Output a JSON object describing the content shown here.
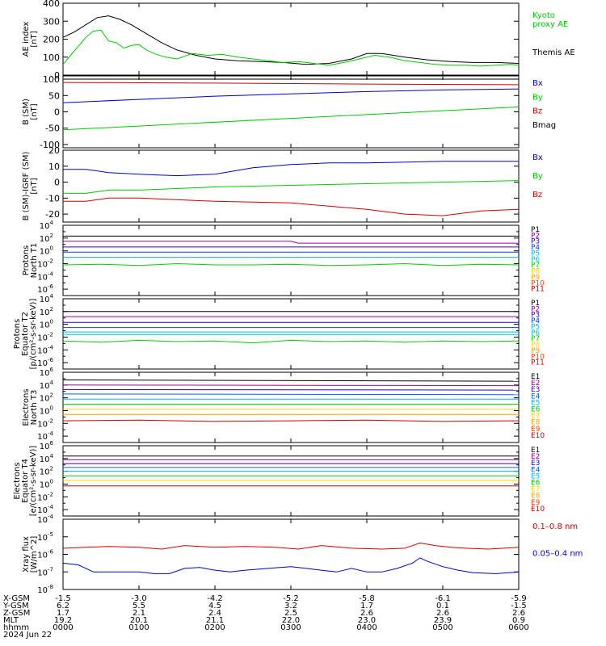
{
  "time_axis": {
    "tick_hours": [
      0,
      1,
      2,
      3,
      4,
      5,
      6
    ],
    "range_hours": [
      0,
      6
    ],
    "row_labels": [
      "X-GSM",
      "Y-GSM",
      "Z-GSM",
      "MLT",
      "hhmm"
    ],
    "rows": [
      [
        "-1.5",
        "-3.0",
        "-4.2",
        "-5.2",
        "-5.8",
        "-6.1",
        "-5.9"
      ],
      [
        "6.2",
        "5.5",
        "4.5",
        "3.2",
        "1.7",
        "0.1",
        "-1.5"
      ],
      [
        "1.7",
        "2.1",
        "2.4",
        "2.5",
        "2.6",
        "2.6",
        "2.6"
      ],
      [
        "19.2",
        "20.1",
        "21.1",
        "22.0",
        "23.0",
        "23.9",
        "0.9"
      ],
      [
        "0000",
        "0100",
        "0200",
        "0300",
        "0400",
        "0500",
        "0600"
      ]
    ],
    "date": "2024 Jun 22"
  },
  "colors": {
    "black": "#000000",
    "red": "#d40000",
    "blue": "#0000d0",
    "green": "#00cc00",
    "p_colors": [
      "#000000",
      "#a000a0",
      "#3000c0",
      "#0040ff",
      "#00b4ff",
      "#00c8c8",
      "#00d000",
      "#ffd800",
      "#ffa000",
      "#ff4000",
      "#cc0000"
    ],
    "e_colors": [
      "#000000",
      "#a000a0",
      "#3000c0",
      "#0060ff",
      "#00b4ff",
      "#00d000",
      "#ffd800",
      "#ffa000",
      "#ff4000",
      "#cc0000"
    ]
  },
  "chart_data": [
    {
      "type": "line",
      "ylabel_lines": [
        "AE index",
        "[nT]"
      ],
      "ylim": [
        0,
        400
      ],
      "yticks": [
        0,
        100,
        200,
        300,
        400
      ],
      "legend": [
        {
          "text": "Kyoto",
          "color": "green"
        },
        {
          "text": "proxy AE",
          "color": "green"
        },
        {
          "text": "Themis AE",
          "color": "black"
        }
      ],
      "series": [
        {
          "name": "Themis AE",
          "color": "black",
          "x": [
            0,
            0.15,
            0.3,
            0.45,
            0.6,
            0.75,
            0.9,
            1.1,
            1.3,
            1.5,
            1.75,
            2.0,
            2.3,
            2.6,
            2.9,
            3.2,
            3.5,
            3.8,
            4.0,
            4.2,
            4.5,
            4.8,
            5.1,
            5.4,
            5.7,
            6.0
          ],
          "y": [
            210,
            240,
            280,
            320,
            330,
            310,
            280,
            230,
            180,
            140,
            110,
            90,
            80,
            75,
            70,
            60,
            65,
            90,
            120,
            120,
            100,
            85,
            75,
            70,
            70,
            65
          ]
        },
        {
          "name": "Kyoto proxy AE",
          "color": "green",
          "x": [
            0,
            0.1,
            0.2,
            0.3,
            0.4,
            0.5,
            0.6,
            0.7,
            0.8,
            0.9,
            1.0,
            1.1,
            1.2,
            1.35,
            1.5,
            1.7,
            1.9,
            2.1,
            2.3,
            2.5,
            2.7,
            2.9,
            3.1,
            3.3,
            3.5,
            3.7,
            3.9,
            4.1,
            4.3,
            4.5,
            4.7,
            4.9,
            5.1,
            5.3,
            5.5,
            5.7,
            5.9,
            6.0
          ],
          "y": [
            60,
            110,
            160,
            210,
            245,
            250,
            190,
            180,
            150,
            165,
            170,
            140,
            120,
            100,
            90,
            120,
            110,
            115,
            100,
            90,
            80,
            70,
            75,
            65,
            55,
            70,
            90,
            110,
            100,
            80,
            70,
            60,
            55,
            55,
            50,
            55,
            60,
            55
          ]
        }
      ]
    },
    {
      "type": "line",
      "ylabel_lines": [
        "B  (SM)",
        "[nT]"
      ],
      "ylim": [
        -110,
        110
      ],
      "yticks": [
        -100,
        -50,
        0,
        50,
        100
      ],
      "legend": [
        {
          "text": "Bx",
          "color": "blue"
        },
        {
          "text": "By",
          "color": "green"
        },
        {
          "text": "Bz",
          "color": "red"
        },
        {
          "text": "Bmag",
          "color": "black"
        }
      ],
      "series": [
        {
          "name": "Bmag",
          "color": "black",
          "x": [
            0,
            6
          ],
          "y": [
            100,
            100
          ]
        },
        {
          "name": "Bz",
          "color": "red",
          "x": [
            0,
            2,
            4,
            6
          ],
          "y": [
            90,
            88,
            85,
            83
          ]
        },
        {
          "name": "Bx",
          "color": "blue",
          "x": [
            0,
            1,
            2,
            3,
            4,
            5,
            6
          ],
          "y": [
            28,
            38,
            48,
            55,
            62,
            67,
            70
          ]
        },
        {
          "name": "By",
          "color": "green",
          "x": [
            0,
            6
          ],
          "y": [
            -55,
            15
          ]
        }
      ]
    },
    {
      "type": "line",
      "ylabel_lines": [
        "B (SM)-IGRF (SM)",
        "[nT]"
      ],
      "ylim": [
        -25,
        20
      ],
      "yticks": [
        -20,
        -10,
        0,
        10,
        20
      ],
      "legend": [
        {
          "text": "Bx",
          "color": "blue"
        },
        {
          "text": "By",
          "color": "green"
        },
        {
          "text": "Bz",
          "color": "red"
        }
      ],
      "series": [
        {
          "name": "Bx",
          "color": "blue",
          "x": [
            0,
            0.3,
            0.6,
            1.0,
            1.5,
            2.0,
            2.5,
            3.0,
            3.5,
            4.0,
            5.0,
            6.0
          ],
          "y": [
            8,
            8,
            6,
            5,
            4,
            5,
            9,
            11,
            12,
            12,
            13,
            13
          ]
        },
        {
          "name": "By",
          "color": "green",
          "x": [
            0,
            0.3,
            0.6,
            1.0,
            2.0,
            3.0,
            4.0,
            5.0,
            6.0
          ],
          "y": [
            -7,
            -7,
            -5,
            -5,
            -3,
            -2,
            -1,
            0,
            1
          ]
        },
        {
          "name": "Bz",
          "color": "red",
          "x": [
            0,
            0.3,
            0.6,
            1.0,
            2.0,
            3.0,
            4.0,
            4.5,
            5.0,
            5.5,
            6.0
          ],
          "y": [
            -12,
            -12,
            -10,
            -10,
            -12,
            -13,
            -17,
            -20,
            -21,
            -18,
            -17
          ]
        }
      ]
    },
    {
      "type": "line",
      "yscale": "log",
      "ylabel_lines": [
        "Protons",
        "North T1"
      ],
      "ylog_range": [
        -7,
        4
      ],
      "ytick_exps": [
        -6,
        -4,
        -2,
        0,
        2,
        4
      ],
      "legend_set": "P",
      "legend_count": 11,
      "series": [
        {
          "name": "P1",
          "color_index": 0,
          "x": [
            0,
            6
          ],
          "y_log": [
            2.3,
            2.3
          ]
        },
        {
          "name": "P2",
          "color_index": 1,
          "x": [
            0,
            3,
            3.1,
            6
          ],
          "y_log": [
            1.5,
            1.5,
            1.2,
            1.2
          ]
        },
        {
          "name": "P3",
          "color_index": 2,
          "x": [
            0,
            6
          ],
          "y_log": [
            0.6,
            0.6
          ]
        },
        {
          "name": "P4",
          "color_index": 3,
          "x": [
            0,
            6
          ],
          "y_log": [
            -0.2,
            -0.2
          ]
        },
        {
          "name": "P5",
          "color_index": 5,
          "x": [
            0,
            6
          ],
          "y_log": [
            -1.0,
            -1.0
          ]
        },
        {
          "name": "P6",
          "color_index": 6,
          "x": [
            0,
            0.5,
            1,
            1.5,
            2,
            2.5,
            3,
            3.5,
            4,
            4.5,
            5,
            5.5,
            6
          ],
          "y_log": [
            -2.2,
            -2.1,
            -2.3,
            -2.0,
            -2.2,
            -2.2,
            -2.1,
            -2.3,
            -2.2,
            -2.0,
            -2.3,
            -2.1,
            -2.2
          ]
        }
      ]
    },
    {
      "type": "line",
      "yscale": "log",
      "ylabel_lines": [
        "Protons",
        "Equator T2",
        "[p/(cm²-s-sr-keV)]"
      ],
      "ylog_range": [
        -7,
        4
      ],
      "ytick_exps": [
        -6,
        -4,
        -2,
        0,
        2,
        4
      ],
      "legend_set": "P",
      "legend_count": 11,
      "series": [
        {
          "name": "P1",
          "color_index": 0,
          "x": [
            0,
            6
          ],
          "y_log": [
            2.0,
            2.0
          ]
        },
        {
          "name": "P2",
          "color_index": 1,
          "x": [
            0,
            6
          ],
          "y_log": [
            1.2,
            1.2
          ]
        },
        {
          "name": "P3",
          "color_index": 2,
          "x": [
            0,
            6
          ],
          "y_log": [
            0.3,
            0.3
          ]
        },
        {
          "name": "P4",
          "color_index": 3,
          "x": [
            0,
            6
          ],
          "y_log": [
            -0.5,
            -0.5
          ]
        },
        {
          "name": "P5",
          "color_index": 4,
          "x": [
            0,
            6
          ],
          "y_log": [
            -1.2,
            -1.2
          ]
        },
        {
          "name": "P6",
          "color_index": 5,
          "x": [
            0,
            6
          ],
          "y_log": [
            -1.6,
            -1.6
          ]
        },
        {
          "name": "P7",
          "color_index": 6,
          "x": [
            0,
            0.5,
            1,
            1.5,
            2,
            2.5,
            3,
            3.5,
            4,
            4.5,
            5,
            5.5,
            6
          ],
          "y_log": [
            -2.6,
            -2.8,
            -2.5,
            -2.7,
            -2.6,
            -2.9,
            -2.5,
            -2.7,
            -2.6,
            -2.8,
            -2.6,
            -2.7,
            -2.6
          ]
        }
      ]
    },
    {
      "type": "line",
      "yscale": "log",
      "ylabel_lines": [
        "Electrons",
        "North T3"
      ],
      "ylog_range": [
        -5,
        6
      ],
      "ytick_exps": [
        -4,
        -2,
        0,
        2,
        4,
        6
      ],
      "legend_set": "E",
      "legend_count": 10,
      "series": [
        {
          "name": "E1",
          "color_index": 0,
          "x": [
            0,
            6
          ],
          "y_log": [
            4.8,
            4.6
          ]
        },
        {
          "name": "E2",
          "color_index": 1,
          "x": [
            0,
            6
          ],
          "y_log": [
            4.0,
            3.9
          ]
        },
        {
          "name": "E3",
          "color_index": 2,
          "x": [
            0,
            6
          ],
          "y_log": [
            3.3,
            3.2
          ]
        },
        {
          "name": "E4",
          "color_index": 3,
          "x": [
            0,
            6
          ],
          "y_log": [
            2.6,
            2.5
          ]
        },
        {
          "name": "E5",
          "color_index": 4,
          "x": [
            0,
            6
          ],
          "y_log": [
            1.8,
            1.8
          ]
        },
        {
          "name": "E6",
          "color_index": 5,
          "x": [
            0,
            6
          ],
          "y_log": [
            1.0,
            1.0
          ]
        },
        {
          "name": "E7",
          "color_index": 6,
          "x": [
            0,
            6
          ],
          "y_log": [
            0.2,
            0.2
          ]
        },
        {
          "name": "E8",
          "color_index": 7,
          "x": [
            0,
            6
          ],
          "y_log": [
            -0.6,
            -0.6
          ]
        },
        {
          "name": "E9",
          "color_index": 9,
          "x": [
            0,
            1,
            2,
            3,
            4,
            5,
            6
          ],
          "y_log": [
            -1.6,
            -1.5,
            -1.7,
            -1.6,
            -1.5,
            -1.7,
            -1.6
          ]
        }
      ]
    },
    {
      "type": "line",
      "yscale": "log",
      "ylabel_lines": [
        "Electrons",
        "Equator T4",
        "[e/(cm²-s-sr-keV)]"
      ],
      "ylog_range": [
        -5,
        6
      ],
      "ytick_exps": [
        -4,
        -2,
        0,
        2,
        4,
        6
      ],
      "legend_set": "E",
      "legend_count": 10,
      "series": [
        {
          "name": "E1",
          "color_index": 0,
          "x": [
            0,
            6
          ],
          "y_log": [
            4.4,
            4.4
          ]
        },
        {
          "name": "E2",
          "color_index": 1,
          "x": [
            0,
            6
          ],
          "y_log": [
            3.8,
            3.8
          ]
        },
        {
          "name": "E3",
          "color_index": 2,
          "x": [
            0,
            6
          ],
          "y_log": [
            3.2,
            3.2
          ]
        },
        {
          "name": "E4",
          "color_index": 3,
          "x": [
            0,
            6
          ],
          "y_log": [
            2.6,
            2.6
          ]
        },
        {
          "name": "E5",
          "color_index": 4,
          "x": [
            0,
            6
          ],
          "y_log": [
            2.0,
            2.0
          ]
        },
        {
          "name": "E6",
          "color_index": 5,
          "x": [
            0,
            6
          ],
          "y_log": [
            1.3,
            1.3
          ]
        },
        {
          "name": "E7",
          "color_index": 6,
          "x": [
            0,
            6
          ],
          "y_log": [
            0.6,
            0.6
          ]
        },
        {
          "name": "E8",
          "color_index": 9,
          "x": [
            0,
            6
          ],
          "y_log": [
            -0.3,
            -0.3
          ]
        }
      ]
    },
    {
      "type": "line",
      "yscale": "log",
      "ylabel_lines": [
        "Xray flux",
        "[W/m^2]"
      ],
      "ylog_range": [
        -8,
        -4
      ],
      "ytick_exps": [
        -8,
        -7,
        -6,
        -5,
        -4
      ],
      "legend": [
        {
          "text": "0.1–0.8 nm",
          "color": "red"
        },
        {
          "text": "0.05–0.4 nm",
          "color": "blue"
        }
      ],
      "series": [
        {
          "name": "0.1–0.8 nm",
          "color": "red",
          "x": [
            0,
            0.3,
            0.6,
            1.0,
            1.3,
            1.6,
            2.0,
            2.4,
            2.8,
            3.1,
            3.4,
            3.8,
            4.2,
            4.5,
            4.7,
            4.9,
            5.1,
            5.3,
            5.6,
            6.0
          ],
          "y_log": [
            -5.65,
            -5.6,
            -5.55,
            -5.6,
            -5.7,
            -5.5,
            -5.6,
            -5.55,
            -5.6,
            -5.7,
            -5.5,
            -5.65,
            -5.7,
            -5.65,
            -5.35,
            -5.5,
            -5.6,
            -5.65,
            -5.7,
            -5.6
          ]
        },
        {
          "name": "0.05–0.4 nm",
          "color": "blue",
          "x": [
            0,
            0.2,
            0.4,
            0.6,
            0.8,
            1.0,
            1.2,
            1.4,
            1.6,
            1.8,
            2.0,
            2.2,
            2.4,
            2.7,
            3.0,
            3.2,
            3.4,
            3.6,
            3.8,
            4.0,
            4.2,
            4.4,
            4.6,
            4.7,
            4.8,
            5.0,
            5.2,
            5.4,
            5.7,
            6.0
          ],
          "y_log": [
            -6.5,
            -6.6,
            -7.0,
            -7.0,
            -7.0,
            -7.0,
            -7.1,
            -7.1,
            -6.8,
            -6.75,
            -6.9,
            -7.0,
            -6.9,
            -6.8,
            -6.7,
            -6.8,
            -6.9,
            -7.0,
            -6.8,
            -7.0,
            -7.0,
            -6.8,
            -6.5,
            -6.2,
            -6.4,
            -6.7,
            -6.9,
            -7.05,
            -7.1,
            -7.0
          ]
        }
      ]
    }
  ]
}
